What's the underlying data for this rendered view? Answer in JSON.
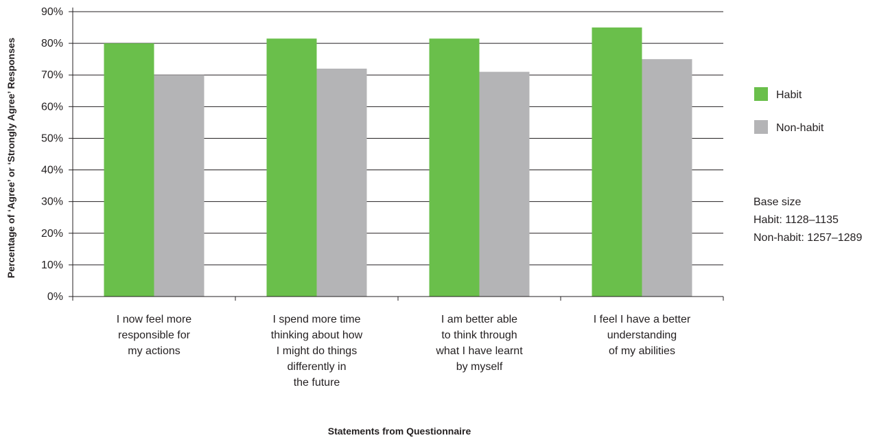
{
  "chart_data": {
    "type": "bar",
    "categories": [
      [
        "I now feel more",
        "responsible for",
        "my actions"
      ],
      [
        "I spend more time",
        "thinking about how",
        "I might do things",
        "differently in",
        "the future"
      ],
      [
        "I am better able",
        "to think through",
        "what I have learnt",
        "by myself"
      ],
      [
        "I feel I have a better",
        "understanding",
        "of my abilities"
      ]
    ],
    "series": [
      {
        "name": "Habit",
        "values": [
          80,
          81.5,
          81.5,
          85
        ],
        "color": "#6abf4b"
      },
      {
        "name": "Non-habit",
        "values": [
          70,
          72,
          71,
          75
        ],
        "color": "#b4b4b6"
      }
    ],
    "ylim": [
      0,
      90
    ],
    "yticks": [
      0,
      10,
      20,
      30,
      40,
      50,
      60,
      70,
      80,
      90
    ],
    "ytick_labels": [
      "0%",
      "10%",
      "20%",
      "30%",
      "40%",
      "50%",
      "60%",
      "70%",
      "80%",
      "90%"
    ],
    "xlabel": "Statements from Questionnaire",
    "ylabel": "Percentage of ‘Agree’ or ‘Strongly Agree’ Responses",
    "grid": true,
    "legend_position": "right",
    "note": {
      "title": "Base size",
      "lines": [
        "Habit: 1128–1135",
        "Non-habit: 1257–1289"
      ]
    }
  }
}
